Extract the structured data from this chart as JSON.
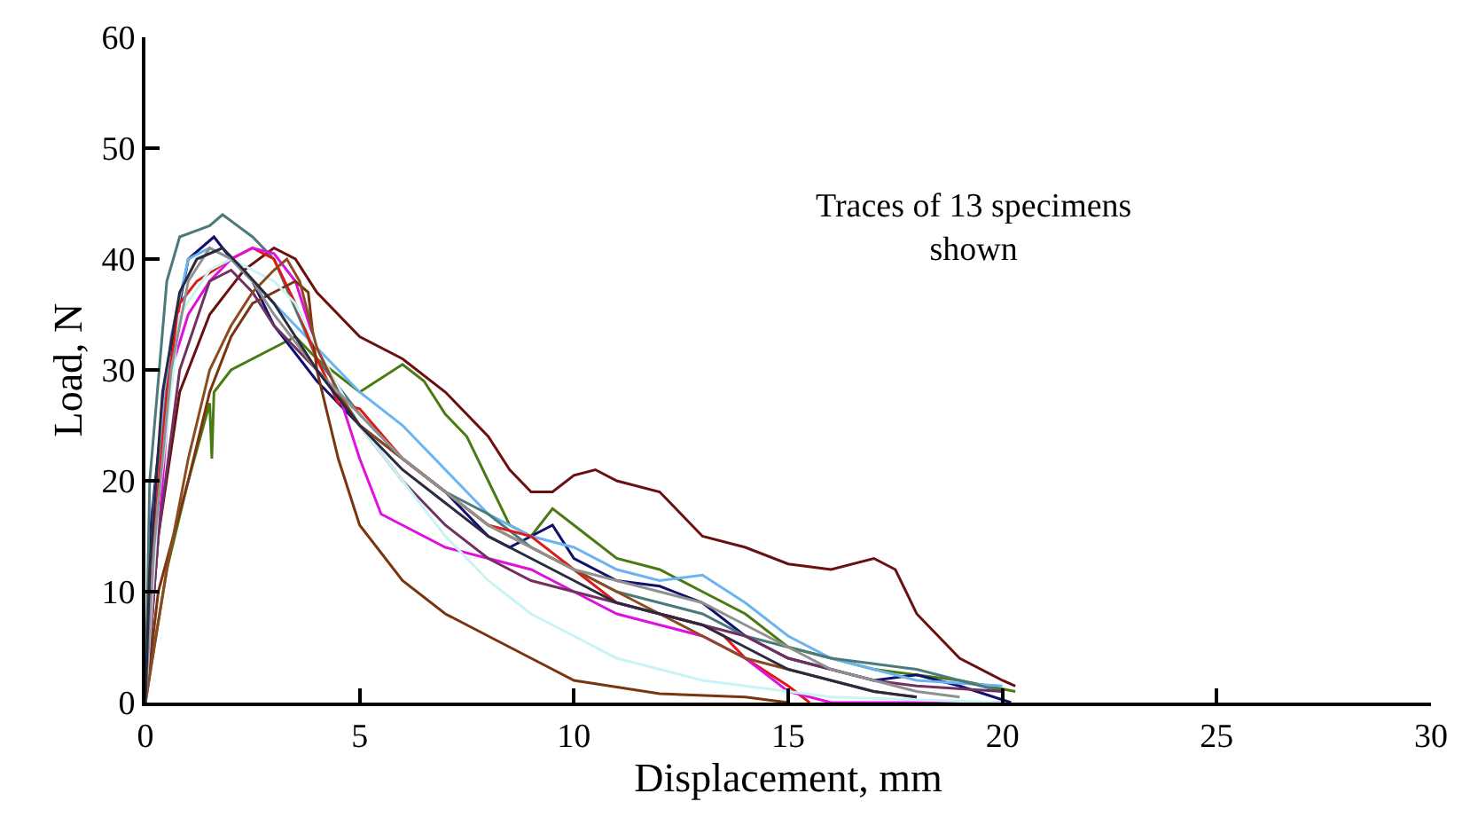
{
  "chart_data": {
    "type": "line",
    "xlabel": "Displacement, mm",
    "ylabel": "Load, N",
    "annotations": [
      "Traces of 13 specimens\nshown"
    ],
    "xlim": [
      0,
      30
    ],
    "xticks": [
      0,
      5,
      10,
      15,
      20,
      25,
      30
    ],
    "ylim": [
      0,
      60
    ],
    "yticks": [
      0,
      10,
      20,
      30,
      40,
      50,
      60
    ],
    "marker": "none",
    "line_style": "solid",
    "series": [
      {
        "color": "#6b1010",
        "x": [
          0,
          0.3,
          0.8,
          1.5,
          2.3,
          3,
          3.5,
          4,
          5,
          6,
          7,
          8,
          8.5,
          9,
          9.5,
          10,
          10.5,
          11,
          12,
          13,
          14,
          15,
          16,
          17,
          17.5,
          18,
          19,
          20,
          20.3
        ],
        "values": [
          0,
          15,
          28,
          35,
          39,
          41,
          40,
          37,
          33,
          31,
          28,
          24,
          21,
          19,
          19,
          20.5,
          21,
          20,
          19,
          15,
          14,
          12.5,
          12,
          13,
          12,
          8,
          4,
          2,
          1.5
        ]
      },
      {
        "color": "#4a7a12",
        "x": [
          0,
          0.2,
          0.5,
          1,
          1.5,
          1.55,
          1.6,
          2,
          3,
          3.5,
          4,
          5,
          6,
          6.5,
          7,
          7.5,
          8,
          8.5,
          9,
          9.5,
          10,
          11,
          12,
          13,
          14,
          15,
          17,
          19,
          20.3
        ],
        "values": [
          0,
          5,
          12,
          20,
          27,
          22,
          28,
          30,
          32,
          33,
          31,
          28,
          30.5,
          29,
          26,
          24,
          20,
          16,
          15,
          17.5,
          16,
          13,
          12,
          10,
          8,
          5,
          3,
          2,
          1
        ]
      },
      {
        "color": "#10106e",
        "x": [
          0,
          0.1,
          0.5,
          1,
          1.6,
          2,
          2.5,
          3,
          4,
          5,
          6,
          7,
          8,
          8.5,
          9,
          9.5,
          10,
          11,
          12,
          13,
          14,
          15,
          16,
          17,
          18,
          19,
          20.2
        ],
        "values": [
          0,
          15,
          30,
          40,
          42,
          40,
          38,
          34,
          29,
          25,
          22,
          19,
          15,
          14,
          15,
          16,
          13,
          11,
          10.5,
          9,
          6,
          4,
          3,
          2,
          2.5,
          1.5,
          0
        ]
      },
      {
        "color": "#6ab4f0",
        "x": [
          0,
          0.2,
          0.6,
          1,
          1.5,
          2,
          3,
          4,
          5,
          6,
          7,
          8,
          9,
          10,
          11,
          12,
          13,
          14,
          15,
          16,
          17,
          18,
          20
        ],
        "values": [
          0,
          18,
          33,
          40,
          41,
          40,
          36,
          32,
          28,
          25,
          21,
          17,
          15,
          14,
          12,
          11,
          11.5,
          9,
          6,
          4,
          3,
          2,
          1.5
        ]
      },
      {
        "color": "#4a7a7a",
        "x": [
          0,
          0.1,
          0.5,
          0.8,
          1.5,
          1.8,
          2.5,
          3,
          4,
          5,
          6,
          7,
          8,
          9,
          10,
          11,
          12,
          13,
          14,
          15,
          16,
          17,
          18,
          19,
          20
        ],
        "values": [
          0,
          20,
          38,
          42,
          43,
          44,
          42,
          40,
          31,
          26,
          22,
          19,
          17,
          14,
          12,
          10,
          9,
          8,
          6,
          5,
          4,
          3.5,
          3,
          2,
          1
        ]
      },
      {
        "color": "#e01818",
        "x": [
          0,
          0.2,
          0.5,
          0.8,
          1.2,
          2,
          2.5,
          3,
          3.5,
          4,
          4.5,
          5,
          6,
          7,
          8,
          9,
          10,
          11,
          12,
          13,
          13.5,
          14,
          15,
          15.5
        ],
        "values": [
          0,
          15,
          28,
          36,
          38,
          40,
          41,
          40,
          36,
          31,
          27,
          26.5,
          22,
          19,
          16,
          15,
          12,
          9,
          8,
          7,
          6,
          4,
          1.5,
          0
        ]
      },
      {
        "color": "#e010e0",
        "x": [
          0,
          0.3,
          0.6,
          1,
          1.5,
          2,
          2.5,
          3,
          3.5,
          4,
          4.5,
          5,
          5.5,
          6,
          7,
          8,
          9,
          10,
          11,
          12,
          13,
          14,
          15,
          16,
          20
        ],
        "values": [
          0,
          15,
          30,
          35,
          38,
          40,
          41,
          40.5,
          38,
          32,
          28,
          22,
          17,
          16,
          14,
          13,
          12,
          10,
          8,
          7,
          6,
          4,
          1,
          0,
          0
        ]
      },
      {
        "color": "#7a3410",
        "x": [
          0,
          0.3,
          1,
          1.5,
          2,
          2.5,
          3,
          3.5,
          3.8,
          4,
          4.5,
          5,
          6,
          7,
          8,
          9,
          10,
          12,
          14,
          15
        ],
        "values": [
          0,
          10,
          20,
          28,
          33,
          36,
          37,
          38,
          37,
          30,
          22,
          16,
          11,
          8,
          6,
          4,
          2,
          0.8,
          0.5,
          0
        ]
      },
      {
        "color": "#703060",
        "x": [
          0,
          0.3,
          0.8,
          1.5,
          2,
          2.5,
          3,
          4,
          5,
          6,
          7,
          8,
          9,
          10,
          11,
          12,
          13,
          14,
          15,
          16,
          17,
          18,
          20
        ],
        "values": [
          0,
          15,
          30,
          38,
          39,
          37,
          34,
          30,
          25,
          20,
          16,
          13,
          11,
          10,
          9,
          8,
          7,
          6,
          4,
          3,
          2,
          1.5,
          1
        ]
      },
      {
        "color": "#c8f4f4",
        "x": [
          0,
          0.3,
          0.8,
          1.5,
          2,
          2.5,
          3,
          3.5,
          4,
          5,
          6,
          7,
          8,
          9,
          10,
          11,
          12,
          13,
          14,
          16,
          20
        ],
        "values": [
          0,
          18,
          35,
          39,
          40,
          39,
          38,
          36,
          32,
          25,
          20,
          15,
          11,
          8,
          6,
          4,
          3,
          2,
          1.5,
          0.5,
          0
        ]
      },
      {
        "color": "#8b4a20",
        "x": [
          0,
          0.5,
          1,
          1.5,
          2,
          2.5,
          3,
          3.3,
          3.6,
          4,
          4.5,
          5,
          6,
          7,
          8,
          9,
          10,
          11,
          12,
          13,
          14,
          15,
          16,
          17,
          18
        ],
        "values": [
          0,
          12,
          22,
          30,
          34,
          37,
          39,
          40,
          38,
          32,
          28,
          25,
          22,
          19,
          16,
          14,
          12,
          10,
          8,
          6,
          4,
          3,
          2,
          1,
          0.5
        ]
      },
      {
        "color": "#909090",
        "x": [
          0,
          0.2,
          0.6,
          1,
          1.5,
          2,
          2.5,
          3,
          4,
          5,
          6,
          7,
          8,
          9,
          10,
          11,
          12,
          13,
          14,
          15,
          16,
          17,
          18,
          19
        ],
        "values": [
          0,
          14,
          30,
          38,
          41,
          40,
          38,
          35,
          30,
          26,
          22,
          19,
          16,
          14,
          12,
          11,
          10,
          9,
          7,
          5,
          3,
          2,
          1,
          0.5
        ]
      },
      {
        "color": "#2a2a40",
        "x": [
          0,
          0.1,
          0.4,
          0.8,
          1.2,
          1.8,
          2.3,
          3,
          4,
          5,
          6,
          7,
          8,
          9,
          10,
          11,
          12,
          13,
          14,
          15,
          16,
          17,
          18
        ],
        "values": [
          0,
          12,
          28,
          37,
          40,
          41,
          39,
          36,
          30,
          25,
          21,
          18,
          15,
          13,
          11,
          9,
          8,
          7,
          5,
          3,
          2,
          1,
          0.5
        ]
      }
    ]
  }
}
